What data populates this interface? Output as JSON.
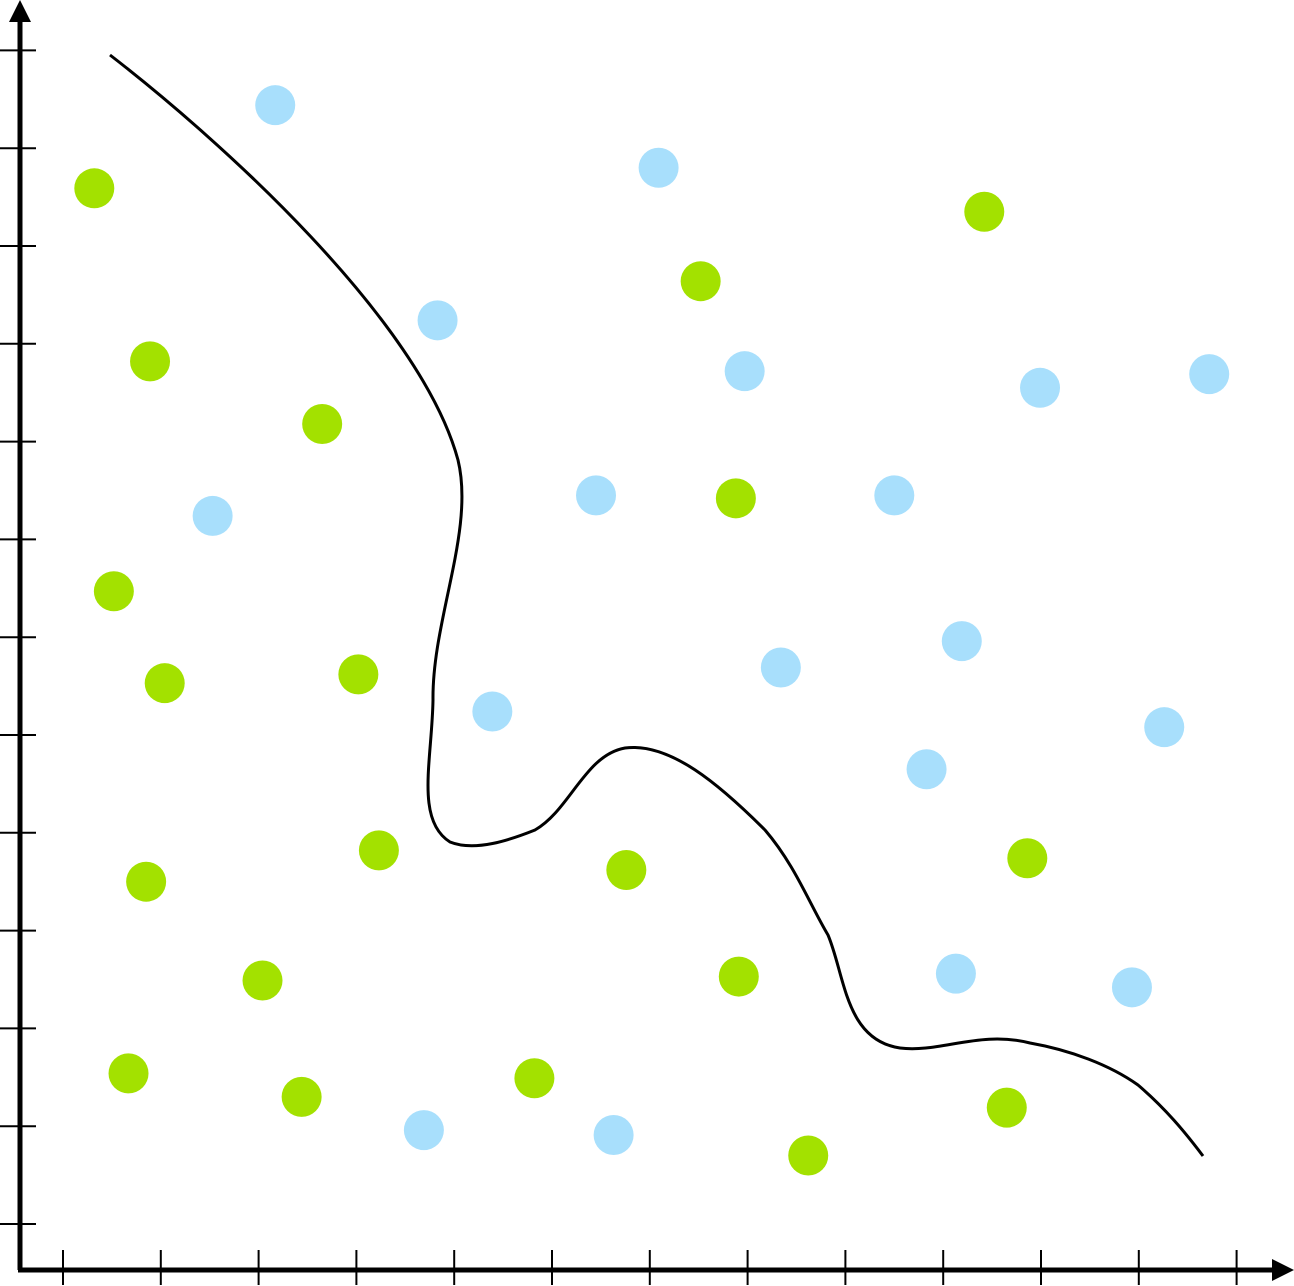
{
  "chart_data": {
    "type": "scatter",
    "title": "",
    "xlabel": "",
    "ylabel": "",
    "xlim": [
      0.56,
      13.8
    ],
    "ylim": [
      0.53,
      13.9
    ],
    "x_ticks": [
      1,
      2,
      3,
      4,
      5,
      6,
      7,
      8,
      9,
      10,
      11,
      12,
      13
    ],
    "y_ticks": [
      1,
      2,
      3,
      4,
      5,
      6,
      7,
      8,
      9,
      10,
      11,
      12,
      13
    ],
    "tick_labels_shown": false,
    "grid": false,
    "legend": "none",
    "has_decision_boundary": true,
    "series": [
      {
        "color": "#a8dffc",
        "points": [
          [
            3.17,
            12.44
          ],
          [
            7.09,
            11.8
          ],
          [
            4.83,
            10.24
          ],
          [
            7.97,
            9.72
          ],
          [
            10.99,
            9.55
          ],
          [
            12.72,
            9.69
          ],
          [
            2.53,
            8.24
          ],
          [
            6.45,
            8.45
          ],
          [
            9.5,
            8.45
          ],
          [
            10.19,
            6.96
          ],
          [
            8.34,
            6.69
          ],
          [
            5.39,
            6.24
          ],
          [
            12.26,
            6.08
          ],
          [
            9.83,
            5.65
          ],
          [
            10.13,
            3.56
          ],
          [
            11.93,
            3.42
          ],
          [
            4.69,
            1.96
          ],
          [
            6.63,
            1.91
          ]
        ]
      },
      {
        "color": "#a3e100",
        "points": [
          [
            1.32,
            11.59
          ],
          [
            7.52,
            10.64
          ],
          [
            10.42,
            11.35
          ],
          [
            1.89,
            9.82
          ],
          [
            3.65,
            9.18
          ],
          [
            7.88,
            8.42
          ],
          [
            1.52,
            7.47
          ],
          [
            2.04,
            6.53
          ],
          [
            4.02,
            6.62
          ],
          [
            4.23,
            4.82
          ],
          [
            6.76,
            4.62
          ],
          [
            10.86,
            4.74
          ],
          [
            1.85,
            4.5
          ],
          [
            3.04,
            3.49
          ],
          [
            7.91,
            3.53
          ],
          [
            1.67,
            2.54
          ],
          [
            3.44,
            2.3
          ],
          [
            5.82,
            2.49
          ],
          [
            10.65,
            2.19
          ],
          [
            8.62,
            1.7
          ]
        ]
      }
    ]
  }
}
